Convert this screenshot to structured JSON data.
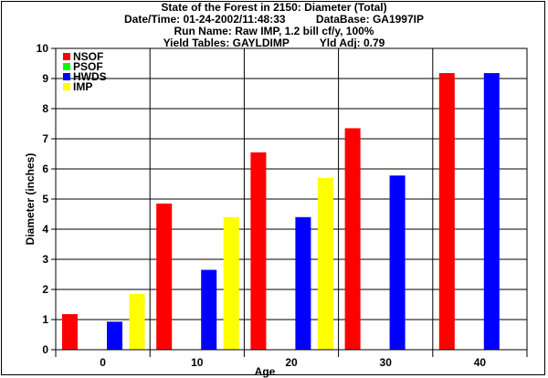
{
  "header": {
    "title": "State of the Forest in 2150: Diameter (Total)",
    "datetime_line": "Date/Time: 01-24-2002/11:48:33          DataBase: GA1997IP",
    "run_line": "Run Name: Raw IMP, 1.2 bill cf/y, 100%",
    "yield_line": "Yield Tables: GAYLDIMP          Yld Adj: 0.79"
  },
  "chart_data": {
    "type": "bar",
    "title": "State of the Forest in 2150: Diameter (Total)",
    "xlabel": "Age",
    "ylabel": "Diameter (inches)",
    "categories": [
      "0",
      "10",
      "20",
      "30",
      "40"
    ],
    "ylim": [
      0,
      10
    ],
    "yticks": [
      "0",
      "1",
      "2",
      "3",
      "4",
      "5",
      "6",
      "7",
      "8",
      "9",
      "10"
    ],
    "grid": true,
    "legend_position": "top-left",
    "series": [
      {
        "name": "NSOF",
        "color": "#ff0000",
        "values": [
          1.18,
          4.85,
          6.55,
          7.35,
          9.18
        ]
      },
      {
        "name": "PSOF",
        "color": "#00ff00",
        "values": [
          null,
          null,
          null,
          null,
          null
        ]
      },
      {
        "name": "HWDS",
        "color": "#0000ff",
        "values": [
          0.93,
          2.65,
          4.4,
          5.78,
          9.18
        ]
      },
      {
        "name": "IMP",
        "color": "#ffff00",
        "values": [
          1.85,
          4.4,
          5.7,
          null,
          null
        ]
      }
    ]
  }
}
